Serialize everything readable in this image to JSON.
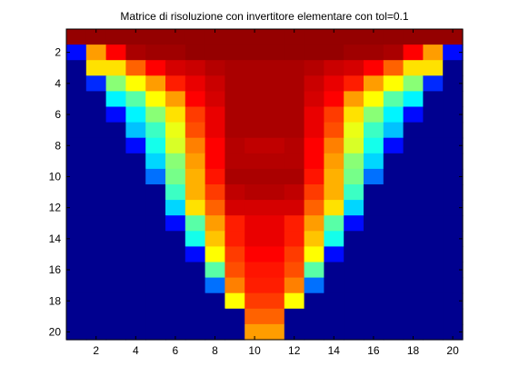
{
  "chart_data": {
    "type": "heatmap",
    "title": "Matrice di risoluzione con invertitore elementare con tol=0.1",
    "xlabel": "",
    "ylabel": "",
    "xlim": [
      0.5,
      20.5
    ],
    "ylim": [
      20.5,
      0.5
    ],
    "xticks": [
      "2",
      "4",
      "6",
      "8",
      "10",
      "12",
      "14",
      "16",
      "18",
      "20"
    ],
    "yticks": [
      "2",
      "4",
      "6",
      "8",
      "10",
      "12",
      "14",
      "16",
      "18",
      "20"
    ],
    "colormap": "jet",
    "clim": [
      0,
      1
    ],
    "grid": false,
    "legend": "none",
    "colormap_stops": [
      "#00008f",
      "#0000ff",
      "#00ffff",
      "#ffff00",
      "#ff0000",
      "#800000"
    ],
    "rows": 20,
    "cols": 20,
    "values": [
      [
        0.98,
        0.98,
        0.98,
        0.98,
        0.98,
        0.98,
        0.98,
        0.98,
        0.98,
        0.98,
        0.98,
        0.98,
        0.98,
        0.98,
        0.98,
        0.98,
        0.98,
        0.98,
        0.98,
        0.98
      ],
      [
        0.12,
        0.72,
        0.88,
        0.96,
        0.97,
        0.97,
        0.98,
        0.98,
        0.98,
        0.98,
        0.98,
        0.98,
        0.98,
        0.98,
        0.97,
        0.97,
        0.96,
        0.88,
        0.72,
        0.12
      ],
      [
        0.0,
        0.65,
        0.65,
        0.78,
        0.88,
        0.92,
        0.93,
        0.95,
        0.96,
        0.96,
        0.96,
        0.96,
        0.95,
        0.93,
        0.92,
        0.88,
        0.78,
        0.65,
        0.65,
        0.0
      ],
      [
        0.0,
        0.15,
        0.5,
        0.62,
        0.72,
        0.85,
        0.9,
        0.93,
        0.96,
        0.96,
        0.96,
        0.96,
        0.93,
        0.9,
        0.85,
        0.72,
        0.62,
        0.5,
        0.15,
        0.0
      ],
      [
        0.0,
        0.0,
        0.35,
        0.45,
        0.62,
        0.72,
        0.88,
        0.92,
        0.96,
        0.96,
        0.96,
        0.96,
        0.92,
        0.88,
        0.72,
        0.62,
        0.45,
        0.35,
        0.0,
        0.0
      ],
      [
        0.0,
        0.0,
        0.12,
        0.35,
        0.5,
        0.65,
        0.82,
        0.9,
        0.96,
        0.96,
        0.96,
        0.96,
        0.9,
        0.82,
        0.65,
        0.5,
        0.35,
        0.12,
        0.0,
        0.0
      ],
      [
        0.0,
        0.0,
        0.0,
        0.3,
        0.42,
        0.6,
        0.8,
        0.9,
        0.96,
        0.96,
        0.96,
        0.96,
        0.9,
        0.8,
        0.6,
        0.42,
        0.3,
        0.0,
        0.0,
        0.0
      ],
      [
        0.0,
        0.0,
        0.0,
        0.12,
        0.38,
        0.58,
        0.75,
        0.88,
        0.95,
        0.94,
        0.94,
        0.95,
        0.88,
        0.75,
        0.58,
        0.38,
        0.12,
        0.0,
        0.0,
        0.0
      ],
      [
        0.0,
        0.0,
        0.0,
        0.0,
        0.32,
        0.5,
        0.72,
        0.88,
        0.95,
        0.95,
        0.95,
        0.95,
        0.88,
        0.72,
        0.5,
        0.32,
        0.0,
        0.0,
        0.0,
        0.0
      ],
      [
        0.0,
        0.0,
        0.0,
        0.0,
        0.22,
        0.48,
        0.7,
        0.86,
        0.96,
        0.96,
        0.96,
        0.96,
        0.86,
        0.7,
        0.48,
        0.22,
        0.0,
        0.0,
        0.0,
        0.0
      ],
      [
        0.0,
        0.0,
        0.0,
        0.0,
        0.0,
        0.42,
        0.7,
        0.82,
        0.94,
        0.95,
        0.95,
        0.94,
        0.82,
        0.7,
        0.42,
        0.0,
        0.0,
        0.0,
        0.0,
        0.0
      ],
      [
        0.0,
        0.0,
        0.0,
        0.0,
        0.0,
        0.32,
        0.65,
        0.78,
        0.92,
        0.92,
        0.92,
        0.92,
        0.78,
        0.65,
        0.32,
        0.0,
        0.0,
        0.0,
        0.0,
        0.0
      ],
      [
        0.0,
        0.0,
        0.0,
        0.0,
        0.0,
        0.12,
        0.45,
        0.72,
        0.85,
        0.9,
        0.9,
        0.85,
        0.72,
        0.45,
        0.12,
        0.0,
        0.0,
        0.0,
        0.0,
        0.0
      ],
      [
        0.0,
        0.0,
        0.0,
        0.0,
        0.0,
        0.0,
        0.38,
        0.68,
        0.85,
        0.9,
        0.9,
        0.85,
        0.68,
        0.38,
        0.0,
        0.0,
        0.0,
        0.0,
        0.0,
        0.0
      ],
      [
        0.0,
        0.0,
        0.0,
        0.0,
        0.0,
        0.0,
        0.12,
        0.62,
        0.82,
        0.88,
        0.88,
        0.82,
        0.62,
        0.12,
        0.0,
        0.0,
        0.0,
        0.0,
        0.0,
        0.0
      ],
      [
        0.0,
        0.0,
        0.0,
        0.0,
        0.0,
        0.0,
        0.0,
        0.45,
        0.8,
        0.86,
        0.86,
        0.8,
        0.45,
        0.0,
        0.0,
        0.0,
        0.0,
        0.0,
        0.0,
        0.0
      ],
      [
        0.0,
        0.0,
        0.0,
        0.0,
        0.0,
        0.0,
        0.0,
        0.22,
        0.75,
        0.85,
        0.85,
        0.75,
        0.22,
        0.0,
        0.0,
        0.0,
        0.0,
        0.0,
        0.0,
        0.0
      ],
      [
        0.0,
        0.0,
        0.0,
        0.0,
        0.0,
        0.0,
        0.0,
        0.0,
        0.62,
        0.82,
        0.82,
        0.62,
        0.0,
        0.0,
        0.0,
        0.0,
        0.0,
        0.0,
        0.0,
        0.0
      ],
      [
        0.0,
        0.0,
        0.0,
        0.0,
        0.0,
        0.0,
        0.0,
        0.0,
        0.0,
        0.78,
        0.78,
        0.0,
        0.0,
        0.0,
        0.0,
        0.0,
        0.0,
        0.0,
        0.0,
        0.0
      ],
      [
        0.0,
        0.0,
        0.0,
        0.0,
        0.0,
        0.0,
        0.0,
        0.0,
        0.0,
        0.72,
        0.72,
        0.0,
        0.0,
        0.0,
        0.0,
        0.0,
        0.0,
        0.0,
        0.0,
        0.0
      ]
    ]
  }
}
